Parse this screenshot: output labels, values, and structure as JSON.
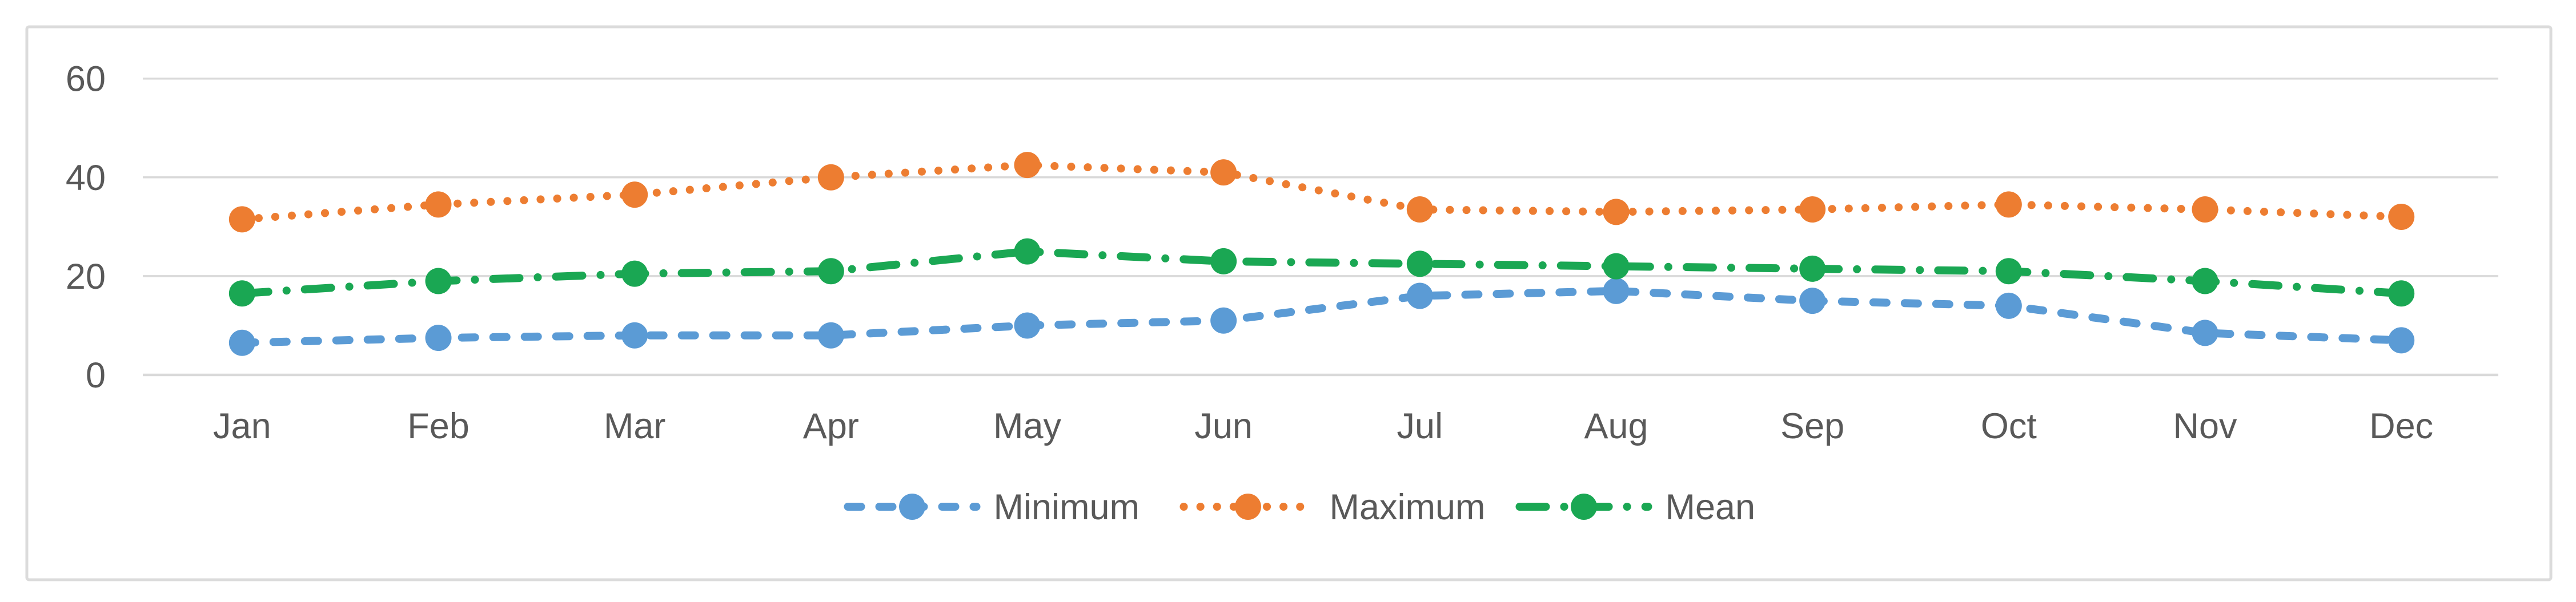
{
  "chart_data": {
    "type": "line",
    "title": "",
    "categories": [
      "Jan",
      "Feb",
      "Mar",
      "Apr",
      "May",
      "Jun",
      "Jul",
      "Aug",
      "Sep",
      "Oct",
      "Nov",
      "Dec"
    ],
    "series": [
      {
        "name": "Minimum",
        "color": "#5B9BD5",
        "line_style": "dashed",
        "marker": "circle",
        "values": [
          6.5,
          7.5,
          8,
          8,
          10,
          11,
          16,
          17,
          15,
          14,
          8.5,
          7
        ]
      },
      {
        "name": "Maximum",
        "color": "#ED7D31",
        "line_style": "dotted",
        "marker": "circle",
        "values": [
          31.5,
          34.5,
          36.5,
          40,
          42.5,
          41,
          33.5,
          33,
          33.5,
          34.5,
          33.5,
          32
        ]
      },
      {
        "name": "Mean",
        "color": "#1AA753",
        "line_style": "dash-dot",
        "marker": "circle",
        "values": [
          16.5,
          19,
          20.5,
          21,
          25,
          23,
          22.5,
          22,
          21.5,
          21,
          19,
          16.5
        ]
      }
    ],
    "y_axis": {
      "min": 0,
      "max": 60,
      "ticks": [
        0,
        20,
        40,
        60
      ]
    },
    "x_axis_label": "",
    "y_axis_label": "",
    "grid": true,
    "legend_position": "bottom-center",
    "legend_items": [
      "Minimum",
      "Maximum",
      "Mean"
    ]
  },
  "colors": {
    "background": "#FFFFFF",
    "border": "#DBDBDB",
    "gridline": "#D9D9D9",
    "tick_label": "#595959"
  }
}
